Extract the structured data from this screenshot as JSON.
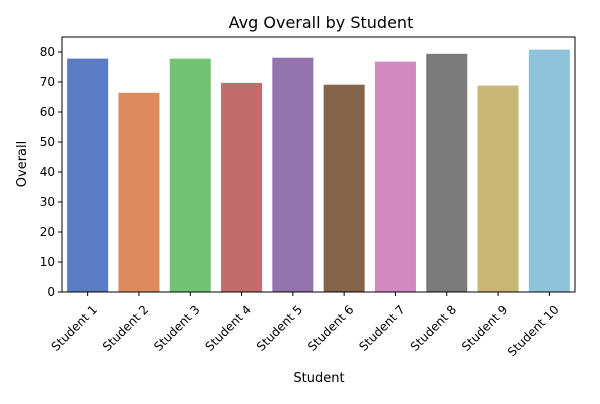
{
  "chart_data": {
    "type": "bar",
    "title": "Avg Overall by Student",
    "xlabel": "Student",
    "ylabel": "Overall",
    "categories": [
      "Student 1",
      "Student 2",
      "Student 3",
      "Student 4",
      "Student 5",
      "Student 6",
      "Student 7",
      "Student 8",
      "Student 9",
      "Student 10"
    ],
    "values": [
      77.8,
      66.4,
      77.8,
      69.7,
      78.1,
      69.1,
      76.8,
      79.4,
      68.8,
      80.8
    ],
    "colors": [
      "#5a7cc5",
      "#dc8a5e",
      "#74c372",
      "#c46c6c",
      "#9474af",
      "#84654a",
      "#d18abf",
      "#7a7a7a",
      "#c9b676",
      "#8ec3da"
    ],
    "ylim": [
      0,
      85
    ],
    "yticks": [
      0,
      10,
      20,
      30,
      40,
      50,
      60,
      70,
      80
    ],
    "grid": false,
    "legend": "none"
  }
}
